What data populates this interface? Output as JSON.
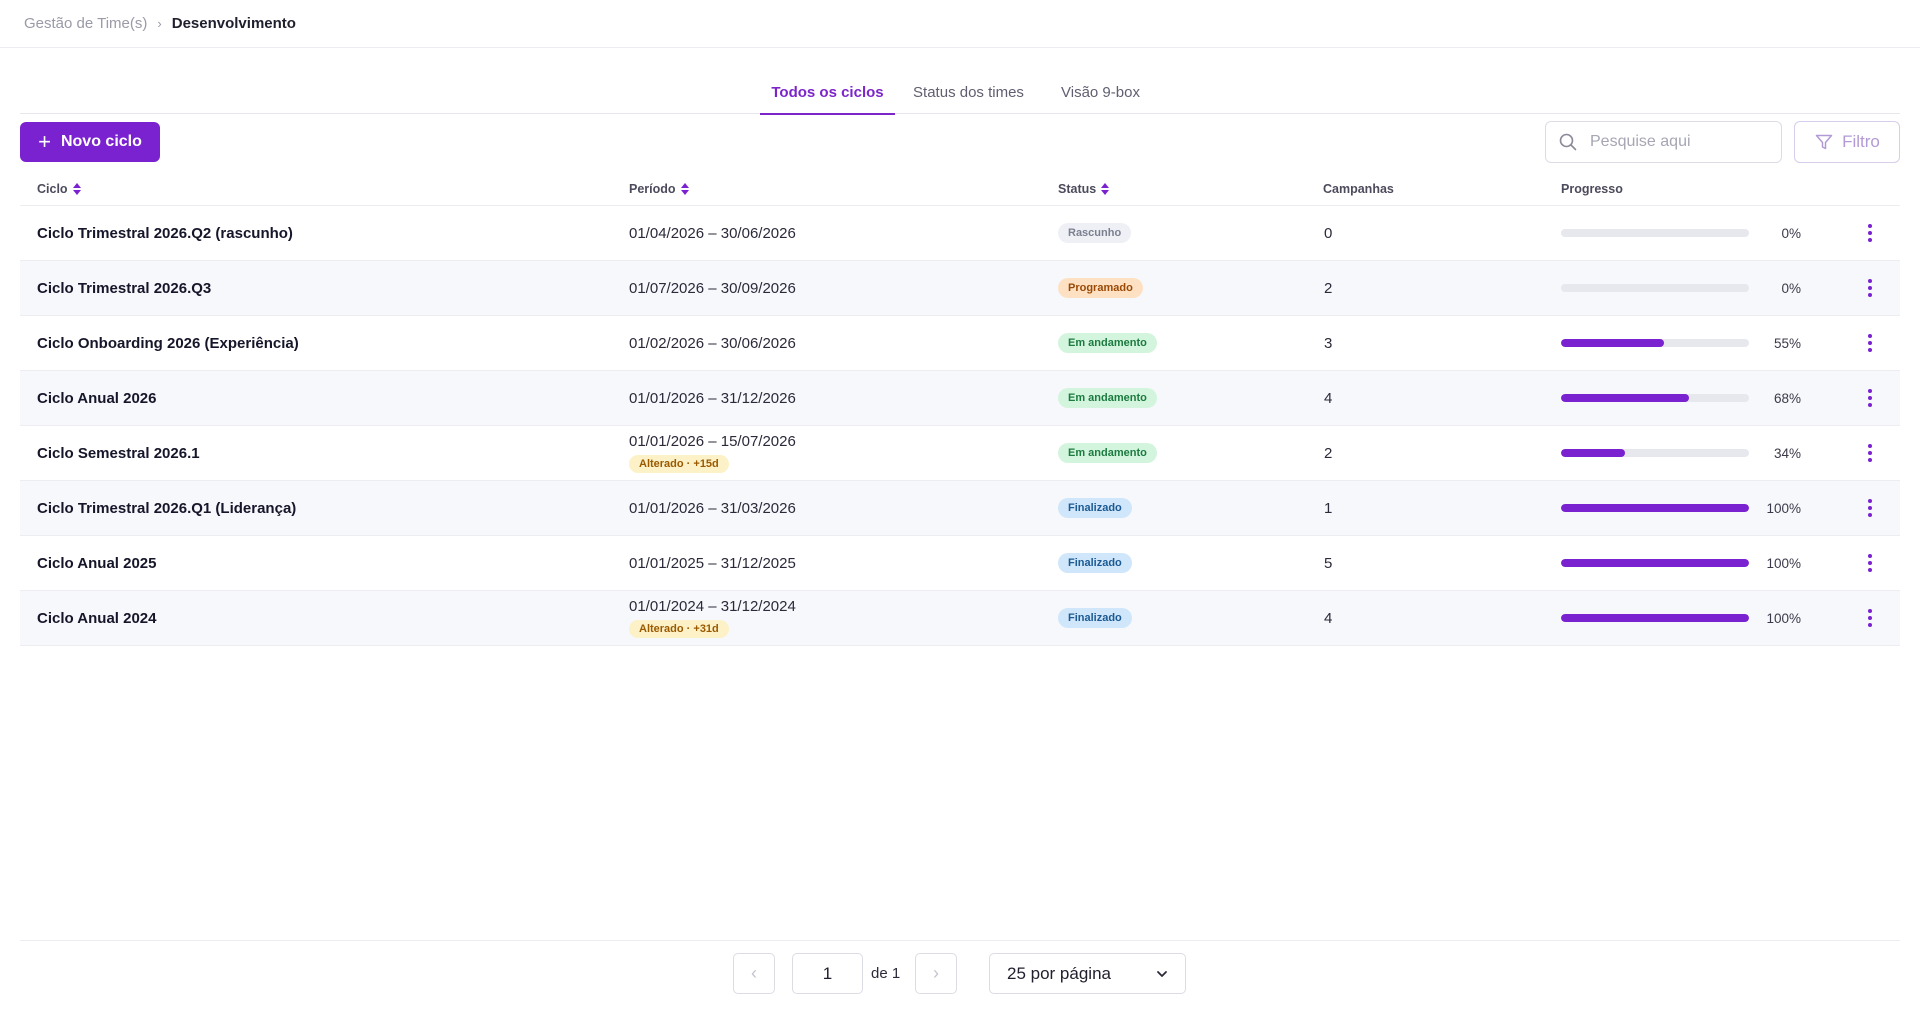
{
  "breadcrumb": {
    "parent": "Gestão de Time(s)",
    "current": "Desenvolvimento"
  },
  "tabs": [
    {
      "label": "Todos os ciclos",
      "active": true
    },
    {
      "label": "Status dos times",
      "active": false
    },
    {
      "label": "Visão 9-box",
      "active": false
    }
  ],
  "toolbar": {
    "new_label": "Novo ciclo",
    "search_placeholder": "Pesquise aqui",
    "filter_label": "Filtro"
  },
  "table": {
    "headers": {
      "ciclo": "Ciclo",
      "periodo": "Período",
      "status": "Status",
      "campanhas": "Campanhas",
      "progresso": "Progresso"
    },
    "rows": [
      {
        "name": "Ciclo Trimestral 2026.Q2 (rascunho)",
        "period": "01/04/2026 – 30/06/2026",
        "changed": "",
        "status": "Rascunho",
        "status_type": "draft",
        "campaigns": "0",
        "progress": 0,
        "progress_label": "0%"
      },
      {
        "name": "Ciclo Trimestral 2026.Q3",
        "period": "01/07/2026 – 30/09/2026",
        "changed": "",
        "status": "Programado",
        "status_type": "sched",
        "campaigns": "2",
        "progress": 0,
        "progress_label": "0%"
      },
      {
        "name": "Ciclo Onboarding 2026 (Experiência)",
        "period": "01/02/2026 – 30/06/2026",
        "changed": "",
        "status": "Em andamento",
        "status_type": "run",
        "campaigns": "3",
        "progress": 55,
        "progress_label": "55%"
      },
      {
        "name": "Ciclo Anual 2026",
        "period": "01/01/2026 – 31/12/2026",
        "changed": "",
        "status": "Em andamento",
        "status_type": "run",
        "campaigns": "4",
        "progress": 68,
        "progress_label": "68%"
      },
      {
        "name": "Ciclo Semestral 2026.1",
        "period": "01/01/2026 – 15/07/2026",
        "changed": "Alterado · +15d",
        "status": "Em andamento",
        "status_type": "run",
        "campaigns": "2",
        "progress": 34,
        "progress_label": "34%"
      },
      {
        "name": "Ciclo Trimestral 2026.Q1 (Liderança)",
        "period": "01/01/2026 – 31/03/2026",
        "changed": "",
        "status": "Finalizado",
        "status_type": "done",
        "campaigns": "1",
        "progress": 100,
        "progress_label": "100%"
      },
      {
        "name": "Ciclo Anual 2025",
        "period": "01/01/2025 – 31/12/2025",
        "changed": "",
        "status": "Finalizado",
        "status_type": "done",
        "campaigns": "5",
        "progress": 100,
        "progress_label": "100%"
      },
      {
        "name": "Ciclo Anual 2024",
        "period": "01/01/2024 – 31/12/2024",
        "changed": "Alterado · +31d",
        "status": "Finalizado",
        "status_type": "done",
        "campaigns": "4",
        "progress": 100,
        "progress_label": "100%"
      }
    ]
  },
  "pagination": {
    "page": "1",
    "of_label": "de 1",
    "per_page": "25 por página"
  },
  "colors": {
    "accent": "#7a22d0"
  }
}
